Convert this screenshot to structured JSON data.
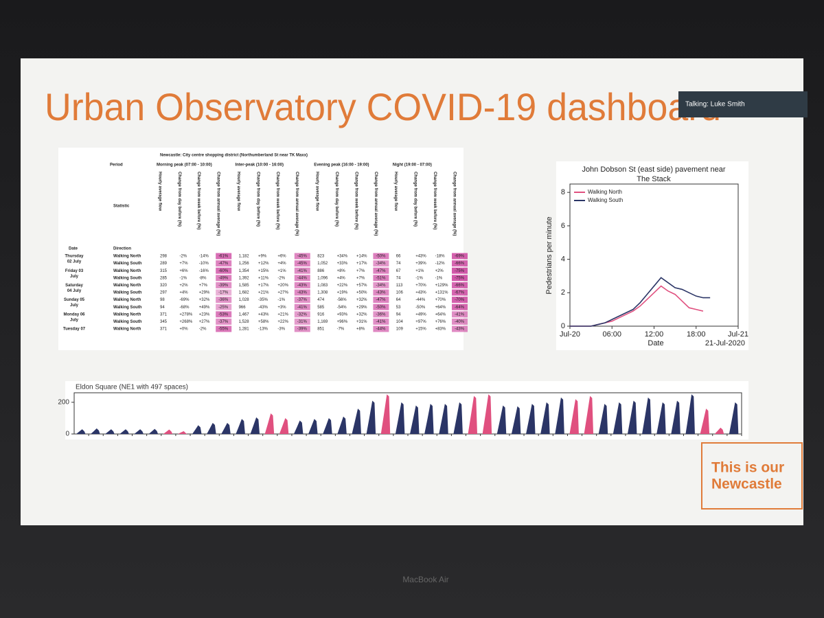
{
  "slide": {
    "title": "Urban Observatory COVID-19 dashboard",
    "talking": "Talking: Luke Smith",
    "logo": [
      "This is our",
      "Newcastle"
    ],
    "device": "MacBook Air"
  },
  "table": {
    "title": "Newcastle: City centre shopping district (Northumberland St near TK Maxx)",
    "row_labels": {
      "period": "Period",
      "statistic": "Statistic",
      "date": "Date",
      "direction": "Direction"
    },
    "periods": [
      "Morning peak (07:00 - 10:00)",
      "Inter-peak (10:00 - 16:00)",
      "Evening peak (16:00 - 19:00)",
      "Night (19:00 - 07:00)"
    ],
    "statistics": [
      "Hourly average flow",
      "Change from day before (%)",
      "Change from week before (%)",
      "Change from annual average (%)"
    ],
    "days": [
      {
        "date": [
          "Thursday",
          "02 July"
        ],
        "rows": [
          {
            "direction": "Walking North",
            "values": [
              "298",
              "-2%",
              "-14%",
              "-61%",
              "1,182",
              "+9%",
              "+6%",
              "-45%",
              "823",
              "+34%",
              "+14%",
              "-50%",
              "66",
              "+43%",
              "-18%",
              "-69%"
            ]
          },
          {
            "direction": "Walking South",
            "values": [
              "289",
              "+7%",
              "-10%",
              "-47%",
              "1,256",
              "+12%",
              "+4%",
              "-45%",
              "1,052",
              "+33%",
              "+17%",
              "-34%",
              "74",
              "+39%",
              "-12%",
              "-66%"
            ]
          }
        ]
      },
      {
        "date": [
          "Friday 03",
          "July"
        ],
        "rows": [
          {
            "direction": "Walking North",
            "values": [
              "315",
              "+6%",
              "-16%",
              "-60%",
              "1,354",
              "+15%",
              "+1%",
              "-41%",
              "886",
              "+8%",
              "+7%",
              "-47%",
              "67",
              "+1%",
              "+2%",
              "-75%"
            ]
          },
          {
            "direction": "Walking South",
            "values": [
              "285",
              "-1%",
              "-8%",
              "-49%",
              "1,392",
              "+11%",
              "-2%",
              "-44%",
              "1,096",
              "+4%",
              "+7%",
              "-51%",
              "74",
              "-1%",
              "-1%",
              "-75%"
            ]
          }
        ]
      },
      {
        "date": [
          "Saturday",
          "04 July"
        ],
        "rows": [
          {
            "direction": "Walking North",
            "values": [
              "320",
              "+2%",
              "+7%",
              "-39%",
              "1,585",
              "+17%",
              "+20%",
              "-43%",
              "1,083",
              "+22%",
              "+57%",
              "-34%",
              "113",
              "+70%",
              "+129%",
              "-66%"
            ]
          },
          {
            "direction": "Walking South",
            "values": [
              "297",
              "+4%",
              "+29%",
              "-17%",
              "1,682",
              "+21%",
              "+27%",
              "-43%",
              "1,308",
              "+19%",
              "+50%",
              "-43%",
              "106",
              "+43%",
              "+131%",
              "-67%"
            ]
          }
        ]
      },
      {
        "date": [
          "Sunday 05",
          "July"
        ],
        "rows": [
          {
            "direction": "Walking North",
            "values": [
              "98",
              "-69%",
              "+32%",
              "-36%",
              "1,028",
              "-35%",
              "-1%",
              "-37%",
              "474",
              "-56%",
              "+32%",
              "-47%",
              "64",
              "-44%",
              "+70%",
              "-70%"
            ]
          },
          {
            "direction": "Walking South",
            "values": [
              "94",
              "-68%",
              "+49%",
              "-25%",
              "966",
              "-43%",
              "+3%",
              "-41%",
              "585",
              "-54%",
              "+29%",
              "-50%",
              "53",
              "-50%",
              "+64%",
              "-64%"
            ]
          }
        ]
      },
      {
        "date": [
          "Monday 06",
          "July"
        ],
        "rows": [
          {
            "direction": "Walking North",
            "values": [
              "371",
              "+278%",
              "+23%",
              "-53%",
              "1,467",
              "+43%",
              "+21%",
              "-32%",
              "916",
              "+93%",
              "+32%",
              "-36%",
              "94",
              "+49%",
              "+64%",
              "-41%"
            ]
          },
          {
            "direction": "Walking South",
            "values": [
              "345",
              "+268%",
              "+27%",
              "-37%",
              "1,528",
              "+58%",
              "+22%",
              "-31%",
              "1,169",
              "+96%",
              "+31%",
              "-41%",
              "104",
              "+97%",
              "+76%",
              "-40%"
            ]
          }
        ]
      },
      {
        "date": [
          "Tuesday 07"
        ],
        "rows": [
          {
            "direction": "Walking North",
            "values": [
              "371",
              "+0%",
              "-2%",
              "-55%",
              "1,281",
              "-13%",
              "-3%",
              "-39%",
              "851",
              "-7%",
              "+8%",
              "-44%",
              "109",
              "+15%",
              "+83%",
              "-43%"
            ]
          }
        ]
      }
    ]
  },
  "chart_data": [
    {
      "type": "line",
      "title": [
        "John Dobson St (east side) pavement near",
        "The Stack"
      ],
      "y_label": "Pedestrians per minute",
      "x_label": "Date",
      "annotation": "21-Jul-2020",
      "x": [
        0,
        1,
        2,
        3,
        4,
        5,
        6,
        7,
        8,
        9,
        10,
        11,
        12,
        13,
        14,
        15,
        16,
        17,
        18,
        19,
        20
      ],
      "xlim": [
        0,
        24
      ],
      "xticks": [
        {
          "value": 0,
          "label": "Jul-20"
        },
        {
          "value": 6,
          "label": "06:00"
        },
        {
          "value": 12,
          "label": "12:00"
        },
        {
          "value": 18,
          "label": "18:00"
        },
        {
          "value": 24,
          "label": "Jul-21"
        }
      ],
      "ylim": [
        0,
        8.5
      ],
      "yticks": [
        0,
        2,
        4,
        6,
        8
      ],
      "legend": "upper left",
      "series": [
        {
          "name": "Walking North",
          "color": "#e0507f",
          "values": [
            0,
            0,
            0,
            0,
            0.1,
            0.2,
            0.3,
            0.5,
            0.7,
            0.9,
            1.2,
            1.6,
            2.0,
            2.4,
            2.1,
            1.9,
            1.5,
            1.1,
            1.0,
            0.9,
            null
          ]
        },
        {
          "name": "Walking South",
          "color": "#2b3566",
          "values": [
            0,
            0,
            0,
            0,
            0.1,
            0.2,
            0.4,
            0.6,
            0.8,
            1.0,
            1.4,
            1.9,
            2.4,
            2.9,
            2.6,
            2.3,
            2.2,
            2.0,
            1.8,
            1.7,
            1.7
          ]
        }
      ]
    },
    {
      "type": "bar",
      "title": "Eldon Square (NE1 with 497 spaces)",
      "ylim": [
        0,
        260
      ],
      "yticks": [
        0,
        200
      ],
      "values": [
        30,
        35,
        30,
        30,
        30,
        32,
        28,
        18,
        55,
        70,
        70,
        95,
        105,
        130,
        100,
        85,
        95,
        100,
        110,
        160,
        210,
        250,
        200,
        180,
        190,
        190,
        200,
        240,
        250,
        180,
        175,
        190,
        200,
        230,
        220,
        240,
        190,
        200,
        210,
        230,
        200,
        210,
        250,
        160,
        40,
        200
      ],
      "colors": [
        "#2b3566",
        "#2b3566",
        "#2b3566",
        "#2b3566",
        "#2b3566",
        "#2b3566",
        "#e0507f",
        "#e0507f",
        "#2b3566",
        "#2b3566",
        "#2b3566",
        "#2b3566",
        "#2b3566",
        "#e0507f",
        "#e0507f",
        "#2b3566",
        "#2b3566",
        "#2b3566",
        "#2b3566",
        "#2b3566",
        "#2b3566",
        "#e0507f",
        "#2b3566",
        "#2b3566",
        "#2b3566",
        "#2b3566",
        "#2b3566",
        "#e0507f",
        "#e0507f",
        "#2b3566",
        "#2b3566",
        "#2b3566",
        "#2b3566",
        "#2b3566",
        "#e0507f",
        "#e0507f",
        "#2b3566",
        "#2b3566",
        "#2b3566",
        "#2b3566",
        "#2b3566",
        "#2b3566",
        "#2b3566",
        "#e0507f",
        "#e0507f",
        "#2b3566"
      ]
    }
  ]
}
